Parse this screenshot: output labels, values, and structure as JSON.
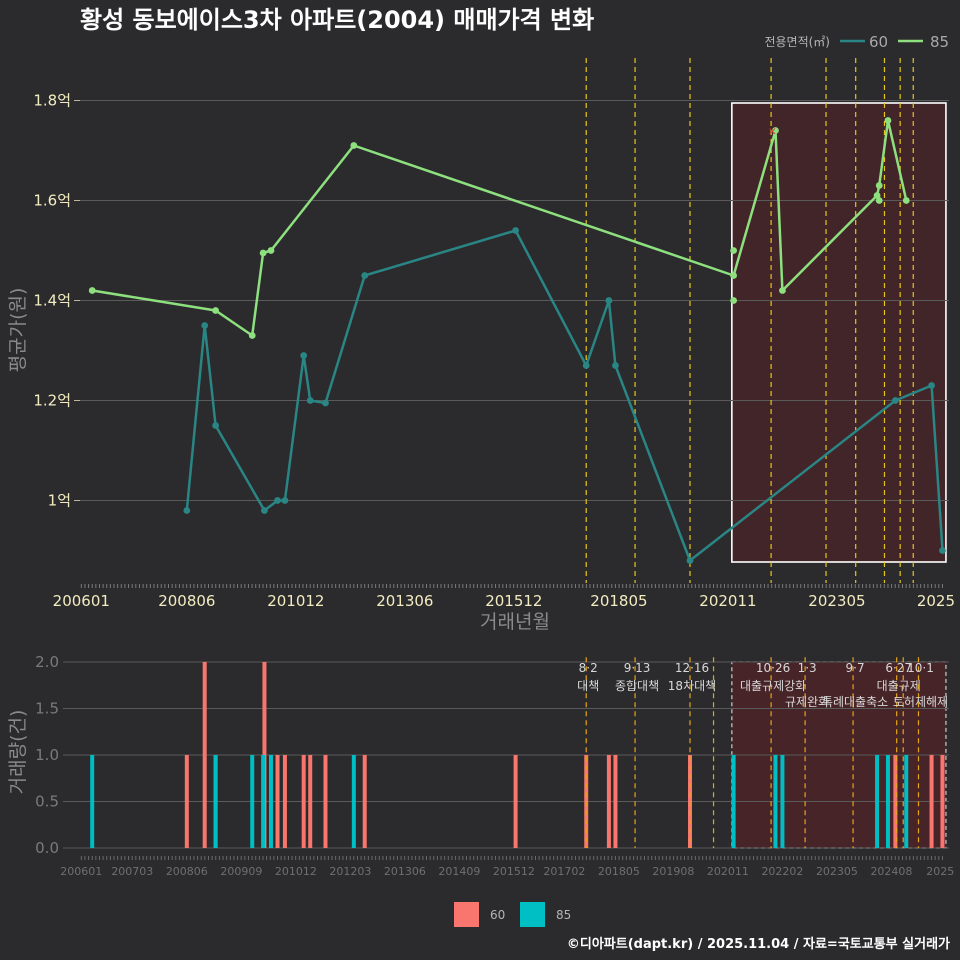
{
  "title": "황성 동보에이스3차 아파트(2004) 매매가격 변화",
  "credit": "©디아파트(dapt.kr) / 2025.11.04 / 자료=국토교통부 실거래가",
  "colors": {
    "series_60_line": "#2a8585",
    "series_85_line": "#8ee07f",
    "bar_60": "#f8766d",
    "bar_85": "#00bfc4",
    "event_line": "#e6c619",
    "highlight_fill": "#4a2428",
    "background": "#2b2b2d"
  },
  "chart_data": [
    {
      "type": "line",
      "title": "황성 동보에이스3차 아파트(2004) 매매가격 변화",
      "xlabel": "거래년월",
      "ylabel": "평균가(원)",
      "legend_title": "전용면적(㎡)",
      "x_tick_labels": [
        "200601",
        "200806",
        "201012",
        "201306",
        "201512",
        "201805",
        "202011",
        "202305",
        "2025"
      ],
      "y_tick_labels": [
        "1억",
        "1.2억",
        "1.4억",
        "1.6억",
        "1.8억"
      ],
      "y_ticks": [
        1.0,
        1.2,
        1.4,
        1.6,
        1.8
      ],
      "ylim": [
        0.835,
        1.885
      ],
      "xlim": [
        2005.97,
        2025.9
      ],
      "highlight_box": [
        2020.92,
        2025.83
      ],
      "events": [
        2017.58,
        2018.7,
        2019.96,
        2021.82,
        2023.08,
        2023.76,
        2024.42,
        2024.78,
        2025.08
      ],
      "series": [
        {
          "name": "60",
          "points": [
            [
              2008.42,
              0.98
            ],
            [
              2008.83,
              1.35
            ],
            [
              2009.08,
              1.15
            ],
            [
              2010.2,
              0.98
            ],
            [
              2010.5,
              1.0
            ],
            [
              2010.67,
              1.0
            ],
            [
              2011.1,
              1.29
            ],
            [
              2011.25,
              1.2
            ],
            [
              2011.6,
              1.195
            ],
            [
              2012.5,
              1.45
            ],
            [
              2015.96,
              1.54
            ],
            [
              2017.58,
              1.27
            ],
            [
              2018.1,
              1.4
            ],
            [
              2018.25,
              1.27
            ],
            [
              2019.96,
              0.88
            ],
            [
              2024.67,
              1.2
            ],
            [
              2025.5,
              1.23
            ],
            [
              2025.75,
              0.9
            ]
          ]
        },
        {
          "name": "85",
          "points": [
            [
              2006.25,
              1.42
            ],
            [
              2009.08,
              1.38
            ],
            [
              2009.92,
              1.33
            ],
            [
              2010.17,
              1.495
            ],
            [
              2010.35,
              1.5
            ],
            [
              2012.25,
              1.71
            ],
            [
              2020.96,
              1.45
            ],
            [
              2020.96,
              1.5
            ],
            [
              2020.96,
              1.4
            ],
            [
              2021.92,
              1.74
            ],
            [
              2022.08,
              1.42
            ],
            [
              2024.25,
              1.61
            ],
            [
              2024.3,
              1.63
            ],
            [
              2024.3,
              1.6
            ],
            [
              2024.5,
              1.76
            ],
            [
              2024.92,
              1.6
            ]
          ]
        }
      ]
    },
    {
      "type": "bar",
      "xlabel": "",
      "ylabel": "거래량(건)",
      "x_tick_labels": [
        "200601",
        "200703",
        "200806",
        "200909",
        "201012",
        "201203",
        "201306",
        "201409",
        "201512",
        "201702",
        "201805",
        "201908",
        "202011",
        "202202",
        "202305",
        "202408",
        "2025"
      ],
      "y_tick_labels": [
        "0.0",
        "0.5",
        "1.0",
        "1.5",
        "2.0"
      ],
      "y_ticks": [
        0,
        0.5,
        1.0,
        1.5,
        2.0
      ],
      "ylim": [
        0,
        2.15
      ],
      "highlight_box": [
        2020.92,
        2025.83
      ],
      "events": [
        {
          "x": 2017.58,
          "date": "8·2",
          "name": "대책"
        },
        {
          "x": 2018.7,
          "date": "9·13",
          "name": "종합대책"
        },
        {
          "x": 2019.96,
          "date": "12·16",
          "name": "18차대책"
        },
        {
          "x": 2020.5,
          "date": "",
          "name": ""
        },
        {
          "x": 2021.82,
          "date": "10·26",
          "name": "대출규제강화"
        },
        {
          "x": 2022.6,
          "date": "1·3",
          "name": "규제완화"
        },
        {
          "x": 2023.7,
          "date": "9·7",
          "name": "특례대출축소"
        },
        {
          "x": 2024.7,
          "date": "6·27",
          "name": "대출규제"
        },
        {
          "x": 2024.85,
          "date": "",
          "name": ""
        },
        {
          "x": 2025.2,
          "date": "10·1",
          "name": "토허제해제"
        }
      ],
      "series": [
        {
          "name": "60",
          "bars": [
            [
              2008.42,
              1
            ],
            [
              2008.83,
              2
            ],
            [
              2009.08,
              1
            ],
            [
              2010.2,
              2
            ],
            [
              2010.5,
              1
            ],
            [
              2010.67,
              1
            ],
            [
              2011.1,
              1
            ],
            [
              2011.25,
              1
            ],
            [
              2011.6,
              1
            ],
            [
              2012.5,
              1
            ],
            [
              2015.96,
              1
            ],
            [
              2017.58,
              1
            ],
            [
              2018.1,
              1
            ],
            [
              2018.25,
              1
            ],
            [
              2019.96,
              1
            ],
            [
              2024.67,
              1
            ],
            [
              2025.5,
              1
            ],
            [
              2025.75,
              1
            ]
          ]
        },
        {
          "name": "85",
          "bars": [
            [
              2006.25,
              1
            ],
            [
              2009.08,
              1
            ],
            [
              2009.92,
              1
            ],
            [
              2010.17,
              1
            ],
            [
              2010.35,
              1
            ],
            [
              2012.25,
              1
            ],
            [
              2020.96,
              1
            ],
            [
              2021.92,
              1
            ],
            [
              2022.08,
              1
            ],
            [
              2024.25,
              1
            ],
            [
              2024.5,
              1
            ],
            [
              2024.92,
              1
            ]
          ]
        }
      ]
    }
  ]
}
